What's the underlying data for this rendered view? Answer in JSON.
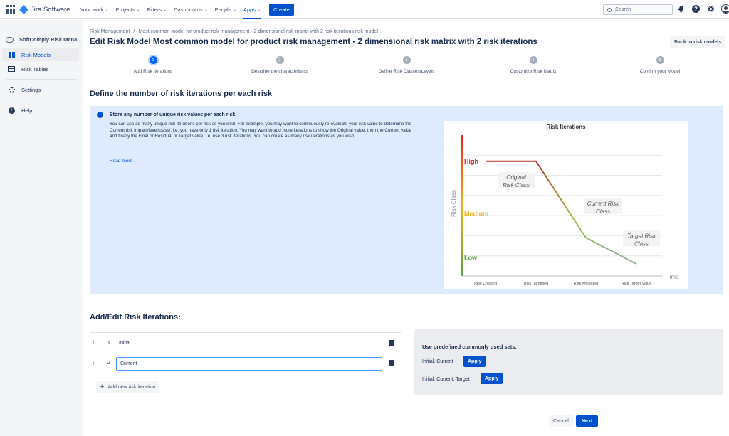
{
  "topnav": {
    "product": "Jira Software",
    "items": [
      {
        "label": "Your work",
        "dropdown": true
      },
      {
        "label": "Projects",
        "dropdown": true
      },
      {
        "label": "Filters",
        "dropdown": true
      },
      {
        "label": "Dashboards",
        "dropdown": true
      },
      {
        "label": "People",
        "dropdown": true
      },
      {
        "label": "Apps",
        "dropdown": true,
        "active": true
      }
    ],
    "create_label": "Create",
    "search_placeholder": "Search",
    "icons": [
      "notification-icon",
      "help-icon",
      "settings-icon",
      "profile-avatar"
    ]
  },
  "sidebar": {
    "app_name": "SoftComply Risk Mana...",
    "items": [
      {
        "label": "Risk Models",
        "icon": "grid-icon",
        "active": true
      },
      {
        "label": "Risk Tables",
        "icon": "table-icon"
      },
      {
        "label": "Settings",
        "icon": "gear-icon"
      },
      {
        "label": "Help",
        "icon": "info-icon"
      }
    ]
  },
  "breadcrumb": {
    "root": "Risk Management",
    "separator": "/",
    "current": "Most common model for product risk management - 2 dimensional risk matrix with 2 risk iterations risk model"
  },
  "page_title": "Edit Risk Model Most common model for product risk management - 2 dimensional risk matrix with 2 risk iterations",
  "back_button": "Back to risk models",
  "steps": [
    {
      "num": "1",
      "label": "Add Risk Iterations",
      "active": true
    },
    {
      "num": "2",
      "label": "Describe the characteristics"
    },
    {
      "num": "3",
      "label": "Define Risk Classes/Levels"
    },
    {
      "num": "4",
      "label": "Customize Risk Matrix"
    },
    {
      "num": "5",
      "label": "Confirm your Model"
    }
  ],
  "section_heading": "Define the number of risk iterations per each risk",
  "info": {
    "title": "Store any number of unique risk values per each risk",
    "text": "You can use as many unique risk iterations per risk as you wish. For example, you may want to continuously re-evaluate your risk value to determine the Current risk impact/level/class/, i.e. you have only 1 risk iteration. You may want to add more iterations to show the Original value, then the Current value and finally the Final or Residual or Target value, i.e. use 3 risk iterations. You can create as many risk iterations as you wish.",
    "read_more": "Read more"
  },
  "chart_data": {
    "type": "line",
    "title": "Risk Iterations",
    "xlabel": "Time",
    "ylabel": "Risk Class",
    "categories": [
      "Risk Created",
      "Risk Identified",
      "Risk Mitigated",
      "Risk Target Value"
    ],
    "y_levels": [
      {
        "label": "High",
        "color": "#e2231a"
      },
      {
        "label": "Medium",
        "color": "#f2b51c"
      },
      {
        "label": "Low",
        "color": "#57a339"
      }
    ],
    "series": [
      {
        "values": [
          2.85,
          2.85,
          0.95,
          0.3
        ]
      }
    ],
    "ylim": [
      0,
      3.5
    ],
    "annotations": [
      {
        "text": [
          "Original",
          "Risk Class"
        ]
      },
      {
        "text": [
          "Current Risk",
          "Class"
        ]
      },
      {
        "text": [
          "Target Risk",
          "Class"
        ]
      }
    ]
  },
  "add_heading": "Add/Edit Risk Iterations:",
  "iterations": [
    {
      "num": "1",
      "value": "Initial",
      "editing": false
    },
    {
      "num": "2",
      "value": "Current",
      "editing": true
    }
  ],
  "add_iteration_label": "Add new risk iteration",
  "presets": {
    "title": "Use predefined commonly used sets:",
    "sets": [
      {
        "label": "Initial, Current",
        "button": "Apply"
      },
      {
        "label": "Initial, Current, Target",
        "button": "Apply"
      }
    ]
  },
  "footer": {
    "cancel": "Cancel",
    "next": "Next"
  }
}
